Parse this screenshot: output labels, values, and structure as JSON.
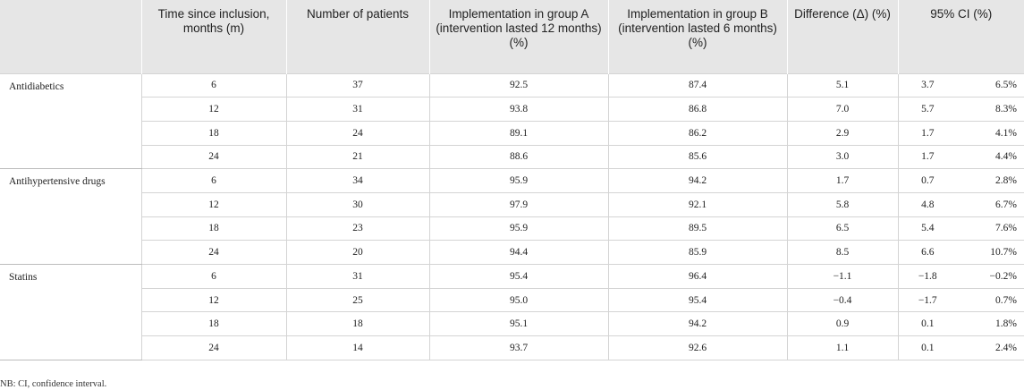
{
  "headers": {
    "group": "",
    "time": "Time since inclusion, months (m)",
    "patients": "Number of patients",
    "group_a": "Implementation in group A (intervention lasted 12 months) (%)",
    "group_b": "Implementation in group B (intervention lasted 6 months) (%)",
    "difference": "Difference (Δ) (%)",
    "ci": "95% CI (%)"
  },
  "groups": [
    {
      "name": "Antidiabetics",
      "rows": [
        {
          "time": "6",
          "patients": "37",
          "a": "92.5",
          "b": "87.4",
          "diff": "5.1",
          "ci_low": "3.7",
          "ci_high": "6.5%"
        },
        {
          "time": "12",
          "patients": "31",
          "a": "93.8",
          "b": "86.8",
          "diff": "7.0",
          "ci_low": "5.7",
          "ci_high": "8.3%"
        },
        {
          "time": "18",
          "patients": "24",
          "a": "89.1",
          "b": "86.2",
          "diff": "2.9",
          "ci_low": "1.7",
          "ci_high": "4.1%"
        },
        {
          "time": "24",
          "patients": "21",
          "a": "88.6",
          "b": "85.6",
          "diff": "3.0",
          "ci_low": "1.7",
          "ci_high": "4.4%"
        }
      ]
    },
    {
      "name": "Antihypertensive drugs",
      "rows": [
        {
          "time": "6",
          "patients": "34",
          "a": "95.9",
          "b": "94.2",
          "diff": "1.7",
          "ci_low": "0.7",
          "ci_high": "2.8%"
        },
        {
          "time": "12",
          "patients": "30",
          "a": "97.9",
          "b": "92.1",
          "diff": "5.8",
          "ci_low": "4.8",
          "ci_high": "6.7%"
        },
        {
          "time": "18",
          "patients": "23",
          "a": "95.9",
          "b": "89.5",
          "diff": "6.5",
          "ci_low": "5.4",
          "ci_high": "7.6%"
        },
        {
          "time": "24",
          "patients": "20",
          "a": "94.4",
          "b": "85.9",
          "diff": "8.5",
          "ci_low": "6.6",
          "ci_high": "10.7%"
        }
      ]
    },
    {
      "name": "Statins",
      "rows": [
        {
          "time": "6",
          "patients": "31",
          "a": "95.4",
          "b": "96.4",
          "diff": "−1.1",
          "ci_low": "−1.8",
          "ci_high": "−0.2%"
        },
        {
          "time": "12",
          "patients": "25",
          "a": "95.0",
          "b": "95.4",
          "diff": "−0.4",
          "ci_low": "−1.7",
          "ci_high": "0.7%"
        },
        {
          "time": "18",
          "patients": "18",
          "a": "95.1",
          "b": "94.2",
          "diff": "0.9",
          "ci_low": "0.1",
          "ci_high": "1.8%"
        },
        {
          "time": "24",
          "patients": "14",
          "a": "93.7",
          "b": "92.6",
          "diff": "1.1",
          "ci_low": "0.1",
          "ci_high": "2.4%"
        }
      ]
    }
  ],
  "note": "NB: CI, confidence interval."
}
